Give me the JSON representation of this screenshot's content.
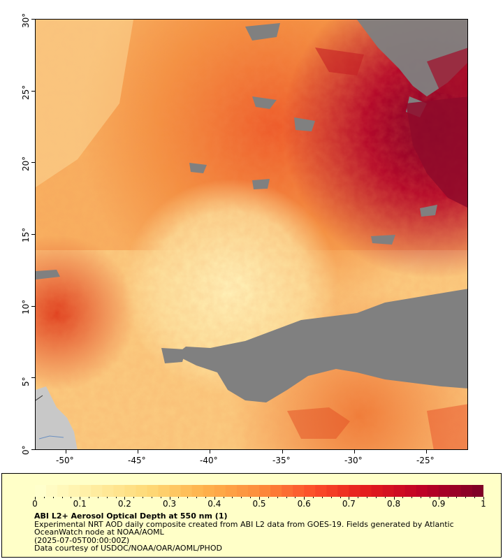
{
  "map": {
    "y_axis_labels": [
      "30°",
      "25°",
      "20°",
      "15°",
      "10°",
      "5°",
      "0°"
    ],
    "x_axis_labels": [
      "-50°",
      "-45°",
      "-40°",
      "-35°",
      "-30°",
      "-25°"
    ],
    "colors": {
      "no_data": "#808080",
      "land": "#c8c8c8",
      "low_aod": "#fee8a8",
      "high_aod": "#800026"
    }
  },
  "legend": {
    "title": "ABI L2+ Aerosol Optical Depth at 550 nm (1)",
    "description": "Experimental NRT AOD daily composite created from ABI L2 data from GOES-19. Fields generated by Atlantic OceanWatch node at NOAA/AOML",
    "date": "(2025-07-05T00:00:00Z)",
    "credit": "Data courtesy of USDOC/NOAA/OAR/AOML/PHOD",
    "colorbar_labels": [
      "0",
      "0.1",
      "0.2",
      "0.3",
      "0.4",
      "0.5",
      "0.6",
      "0.7",
      "0.8",
      "0.9",
      "1"
    ],
    "colorbar_range": [
      0,
      1
    ]
  }
}
